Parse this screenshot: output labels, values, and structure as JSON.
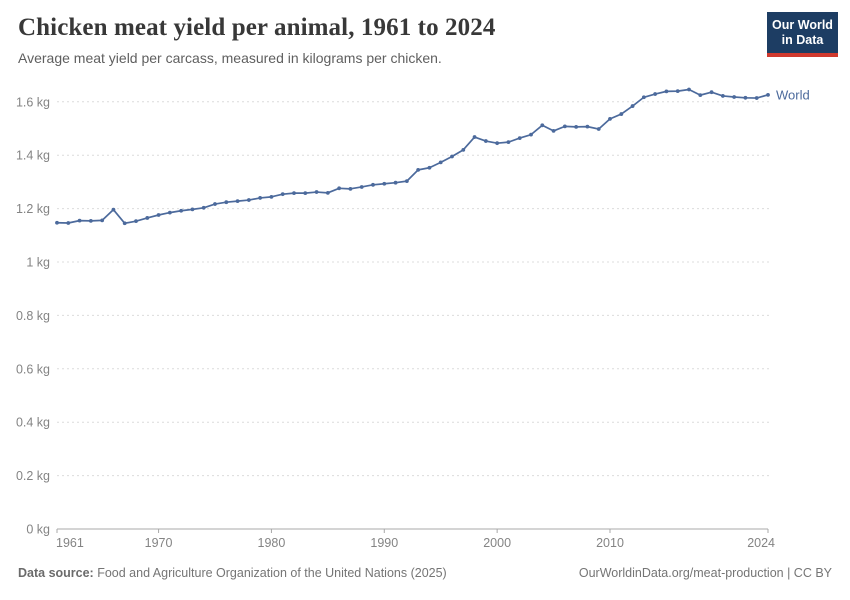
{
  "header": {
    "title": "Chicken meat yield per animal, 1961 to 2024",
    "subtitle": "Average meat yield per carcass, measured in kilograms per chicken."
  },
  "logo": {
    "line1": "Our World",
    "line2": "in Data",
    "bg_color": "#1d3d63",
    "accent_color": "#d0392e"
  },
  "chart_data": {
    "type": "line",
    "title": "Chicken meat yield per animal, 1961 to 2024",
    "ylabel": "kg",
    "xlabel": "",
    "grid": "horizontal-dashed",
    "legend_position": "line-end-label",
    "xlim": [
      1961,
      2024
    ],
    "ylim": [
      0,
      1.6
    ],
    "x_ticks": [
      1961,
      1970,
      1980,
      1990,
      2000,
      2010,
      2024
    ],
    "y_ticks": [
      {
        "value": 0,
        "label": "0 kg"
      },
      {
        "value": 0.2,
        "label": "0.2 kg"
      },
      {
        "value": 0.4,
        "label": "0.4 kg"
      },
      {
        "value": 0.6,
        "label": "0.6 kg"
      },
      {
        "value": 0.8,
        "label": "0.8 kg"
      },
      {
        "value": 1,
        "label": "1 kg"
      },
      {
        "value": 1.2,
        "label": "1.2 kg"
      },
      {
        "value": 1.4,
        "label": "1.4 kg"
      },
      {
        "value": 1.6,
        "label": "1.6 kg"
      }
    ],
    "series": [
      {
        "name": "World",
        "color": "#4c6a9c",
        "years": [
          1961,
          1962,
          1963,
          1964,
          1965,
          1966,
          1967,
          1968,
          1969,
          1970,
          1971,
          1972,
          1973,
          1974,
          1975,
          1976,
          1977,
          1978,
          1979,
          1980,
          1981,
          1982,
          1983,
          1984,
          1985,
          1986,
          1987,
          1988,
          1989,
          1990,
          1991,
          1992,
          1993,
          1994,
          1995,
          1996,
          1997,
          1998,
          1999,
          2000,
          2001,
          2002,
          2003,
          2004,
          2005,
          2006,
          2007,
          2008,
          2009,
          2010,
          2011,
          2012,
          2013,
          2014,
          2015,
          2016,
          2017,
          2018,
          2019,
          2020,
          2021,
          2022,
          2023,
          2024
        ],
        "values": [
          1.147,
          1.146,
          1.155,
          1.154,
          1.156,
          1.196,
          1.145,
          1.153,
          1.165,
          1.176,
          1.185,
          1.192,
          1.197,
          1.203,
          1.217,
          1.224,
          1.228,
          1.232,
          1.24,
          1.244,
          1.254,
          1.258,
          1.258,
          1.262,
          1.259,
          1.276,
          1.274,
          1.281,
          1.289,
          1.293,
          1.297,
          1.303,
          1.345,
          1.353,
          1.373,
          1.395,
          1.42,
          1.468,
          1.453,
          1.445,
          1.449,
          1.464,
          1.477,
          1.512,
          1.491,
          1.508,
          1.506,
          1.507,
          1.498,
          1.536,
          1.554,
          1.584,
          1.617,
          1.629,
          1.639,
          1.64,
          1.646,
          1.625,
          1.636,
          1.622,
          1.618,
          1.615,
          1.614,
          1.626
        ]
      }
    ]
  },
  "footer": {
    "source_label": "Data source:",
    "source_text": " Food and Agriculture Organization of the United Nations (2025)",
    "attribution": "OurWorldinData.org/meat-production | CC BY"
  }
}
